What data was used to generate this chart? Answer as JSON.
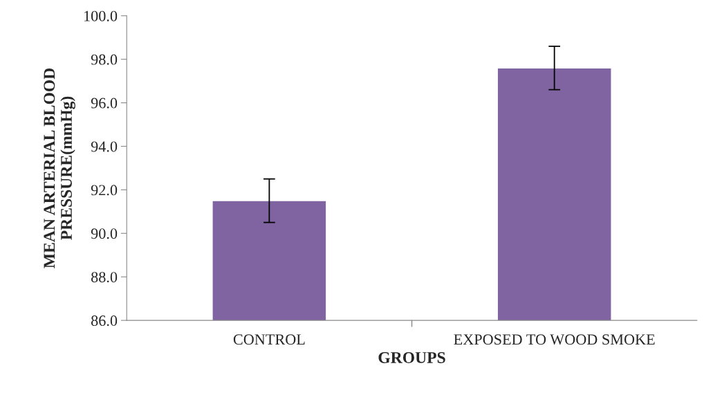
{
  "chart_data": {
    "type": "bar",
    "categories": [
      "CONTROL",
      "EXPOSED TO WOOD SMOKE"
    ],
    "values": [
      91.5,
      97.6
    ],
    "errors": [
      1.0,
      1.0
    ],
    "color": "#8064a2",
    "xlabel": "GROUPS",
    "ylabel": "MEAN ARTERIAL BLOOD\nPRESSURE(mmHg)",
    "ylim": [
      86,
      100
    ],
    "yticks": [
      {
        "value": 86,
        "label": "86.0"
      },
      {
        "value": 88,
        "label": "88.0"
      },
      {
        "value": 90,
        "label": "90.0"
      },
      {
        "value": 92,
        "label": "92.0"
      },
      {
        "value": 94,
        "label": "94.0"
      },
      {
        "value": 96,
        "label": "96.0"
      },
      {
        "value": 98,
        "label": "98.0"
      },
      {
        "value": 100,
        "label": "100.0"
      }
    ],
    "grid": false,
    "legend": false
  }
}
